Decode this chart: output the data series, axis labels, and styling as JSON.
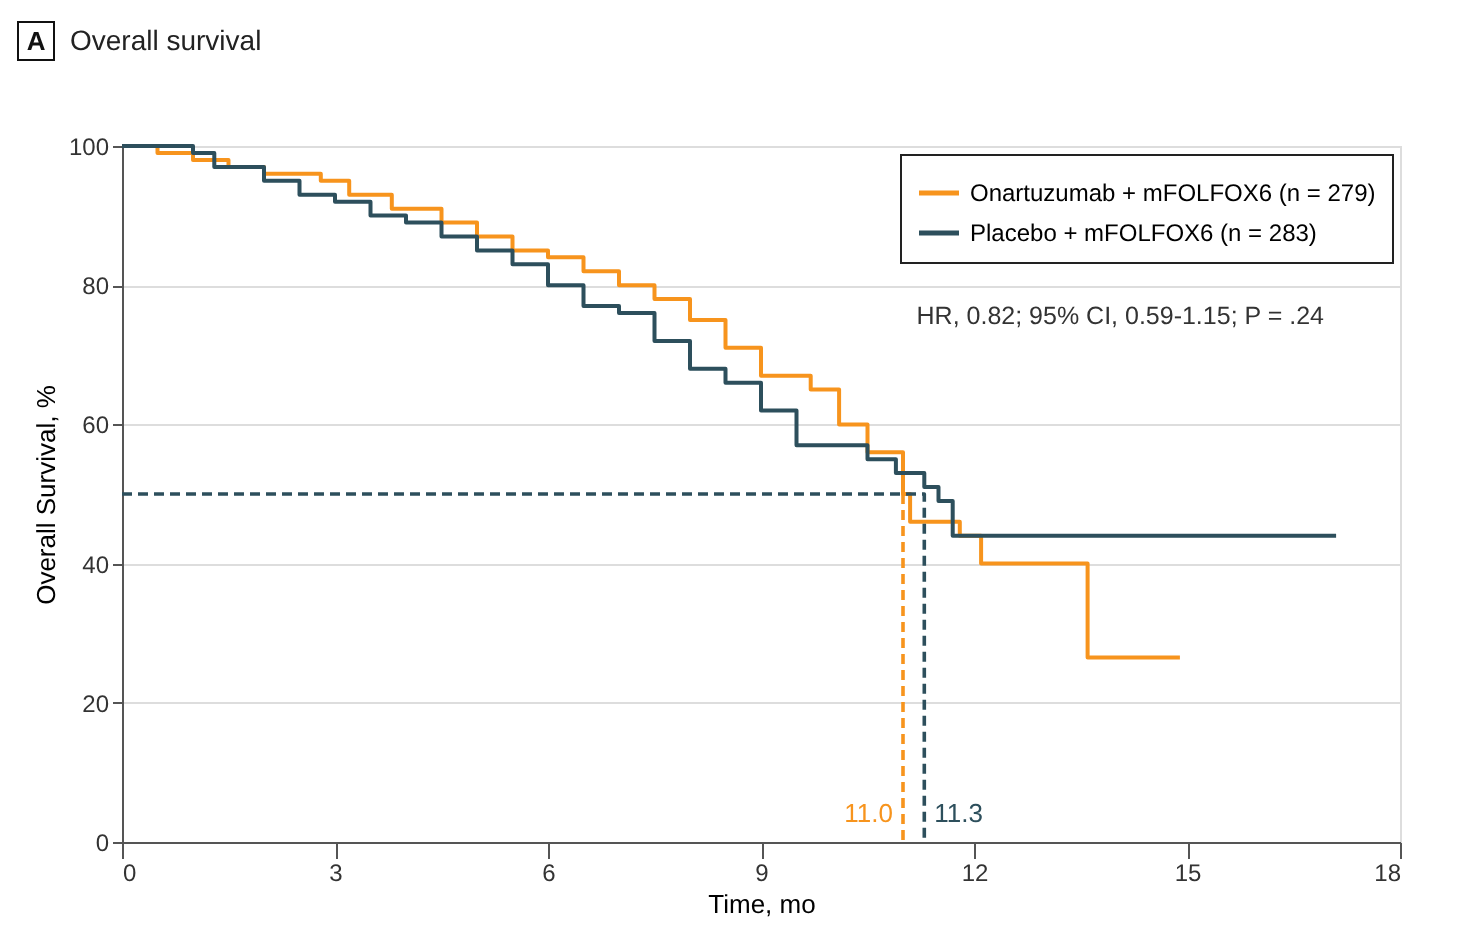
{
  "chart_data": {
    "type": "step",
    "title": "Overall survival",
    "xlabel": "Time, mo",
    "ylabel": "Overall Survival, %",
    "xlim": [
      0,
      18
    ],
    "xticks": [
      0,
      3,
      6,
      9,
      12,
      15,
      18
    ],
    "ylim": [
      0,
      100
    ],
    "yticks": [
      0,
      20,
      40,
      60,
      80,
      100
    ],
    "grid": "y",
    "legend": "top right",
    "marker": "none",
    "series": [
      {
        "name": "Onartuzumab + mFOLFOX6 (n = 279)",
        "color": "#f7941d",
        "x": [
          0,
          0.5,
          1,
          1.5,
          2,
          2.8,
          3.2,
          3.8,
          4.5,
          5,
          5.5,
          6,
          6.5,
          7,
          7.5,
          8,
          8.5,
          9,
          9.7,
          10.1,
          10.5,
          11.0,
          11.1,
          11.8,
          12.1,
          13.6,
          14.9
        ],
        "values": [
          100,
          99,
          98,
          97,
          96,
          95,
          93,
          91,
          89,
          87,
          85,
          84,
          82,
          80,
          78,
          75,
          71,
          67,
          65,
          60,
          56,
          50,
          46,
          44,
          40,
          26.5,
          26.5
        ]
      },
      {
        "name": "Placebo + mFOLFOX6 (n = 283)",
        "color": "#2d4f5c",
        "x": [
          0,
          1,
          1.3,
          2,
          2.5,
          3,
          3.5,
          4,
          4.5,
          5,
          5.5,
          6,
          6.5,
          7,
          7.5,
          8,
          8.5,
          9,
          9.5,
          10.5,
          10.9,
          11.3,
          11.5,
          11.7,
          17.1
        ],
        "values": [
          100,
          99,
          97,
          95,
          93,
          92,
          90,
          89,
          87,
          85,
          83,
          80,
          77,
          76,
          72,
          68,
          66,
          62,
          57,
          55,
          53,
          51,
          49,
          44,
          44
        ]
      },
      {
        "type": "line",
        "line_style": "dashed",
        "color": "#f7941d",
        "x": [
          11.0,
          11.0
        ],
        "values": [
          50,
          0
        ]
      },
      {
        "type": "line",
        "line_style": "dashed",
        "color": "#2d4f5c",
        "x": [
          0,
          11.3,
          11.3
        ],
        "values": [
          50,
          50,
          0
        ]
      }
    ],
    "annotations": [
      "A",
      "HR, 0.82; 95% CI, 0.59-1.15; P = .24",
      {
        "text": "11.0",
        "x": 11.0,
        "y": 2
      },
      {
        "text": "11.3",
        "x": 11.3,
        "y": 2
      }
    ]
  }
}
